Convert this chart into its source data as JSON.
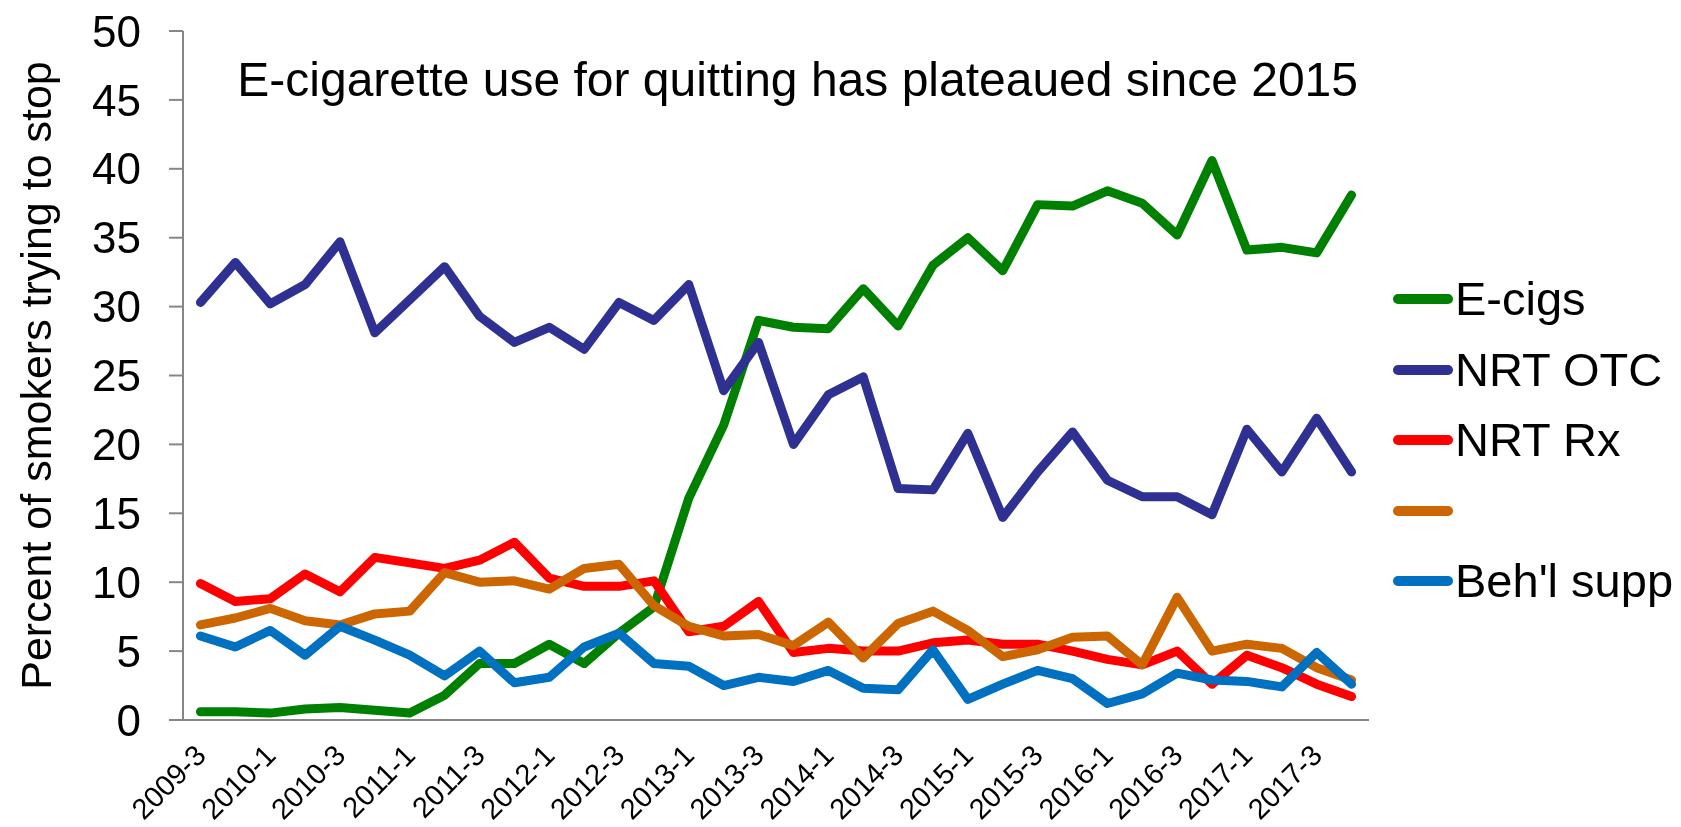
{
  "chart_data": {
    "type": "line",
    "title": "E-cigarette use for quitting has plateaued since 2015",
    "ylabel": "Percent of smokers trying to stop",
    "categories": [
      "2009-3",
      null,
      "2010-1",
      null,
      "2010-3",
      null,
      "2011-1",
      null,
      "2011-3",
      null,
      "2012-1",
      null,
      "2012-3",
      null,
      "2013-1",
      null,
      "2013-3",
      null,
      "2014-1",
      null,
      "2014-3",
      null,
      "2015-1",
      null,
      "2015-3",
      null,
      "2016-1",
      null,
      "2016-3",
      null,
      "2017-1",
      null,
      "2017-3",
      null
    ],
    "series": [
      {
        "name": "E-cigs",
        "color": "#008000",
        "values": [
          0.6,
          0.6,
          0.5,
          0.8,
          0.9,
          0.7,
          0.5,
          1.8,
          4.1,
          4.1,
          5.5,
          4.1,
          6.3,
          8.2,
          16.1,
          21.4,
          29.0,
          28.5,
          28.4,
          31.3,
          28.6,
          33.0,
          35.0,
          32.6,
          37.4,
          37.3,
          38.4,
          37.5,
          35.2,
          40.6,
          34.1,
          34.3,
          33.9,
          38.1
        ]
      },
      {
        "name": "NRT OTC",
        "color": "#2e3192",
        "values": [
          30.3,
          33.2,
          30.2,
          31.6,
          34.7,
          28.1,
          30.5,
          32.9,
          29.3,
          27.4,
          28.5,
          26.9,
          30.3,
          29.0,
          31.6,
          23.9,
          27.4,
          20.0,
          23.6,
          24.9,
          16.8,
          16.7,
          20.8,
          14.7,
          18.0,
          20.9,
          17.4,
          16.2,
          16.2,
          14.9,
          21.1,
          18.0,
          21.9,
          18.0
        ]
      },
      {
        "name": "NRT Rx",
        "color": "#ff0000",
        "values": [
          9.9,
          8.6,
          8.8,
          10.6,
          9.3,
          11.8,
          11.4,
          11.0,
          11.6,
          12.9,
          10.3,
          9.7,
          9.7,
          10.1,
          6.4,
          6.8,
          8.6,
          4.9,
          5.2,
          5.0,
          5.0,
          5.6,
          5.8,
          5.5,
          5.5,
          5.0,
          4.4,
          4.0,
          5.0,
          2.6,
          4.7,
          3.8,
          2.6,
          1.7
        ]
      },
      {
        "color": "#cc6600",
        "values": [
          6.9,
          7.4,
          8.1,
          7.2,
          6.9,
          7.7,
          7.9,
          10.7,
          10.0,
          10.1,
          9.5,
          11.0,
          11.3,
          8.3,
          6.8,
          6.1,
          6.2,
          5.4,
          7.1,
          4.5,
          7.0,
          7.9,
          6.5,
          4.6,
          5.1,
          6.0,
          6.1,
          4.0,
          8.9,
          5.0,
          5.5,
          5.2,
          3.8,
          2.9
        ]
      },
      {
        "name": "Beh'l supp",
        "color": "#0070c0",
        "values": [
          6.1,
          5.3,
          6.5,
          4.7,
          6.8,
          5.8,
          4.7,
          3.2,
          5.0,
          2.7,
          3.1,
          5.3,
          6.3,
          4.1,
          3.9,
          2.5,
          3.1,
          2.8,
          3.6,
          2.3,
          2.2,
          5.1,
          1.5,
          2.6,
          3.6,
          3.0,
          1.2,
          1.9,
          3.4,
          2.9,
          2.8,
          2.4,
          4.9,
          2.6
        ]
      }
    ],
    "ylim": [
      0,
      50
    ],
    "yticks": [
      0,
      5,
      10,
      15,
      20,
      25,
      30,
      35,
      40,
      45,
      50
    ],
    "legend": "right",
    "line_style": "solid"
  }
}
